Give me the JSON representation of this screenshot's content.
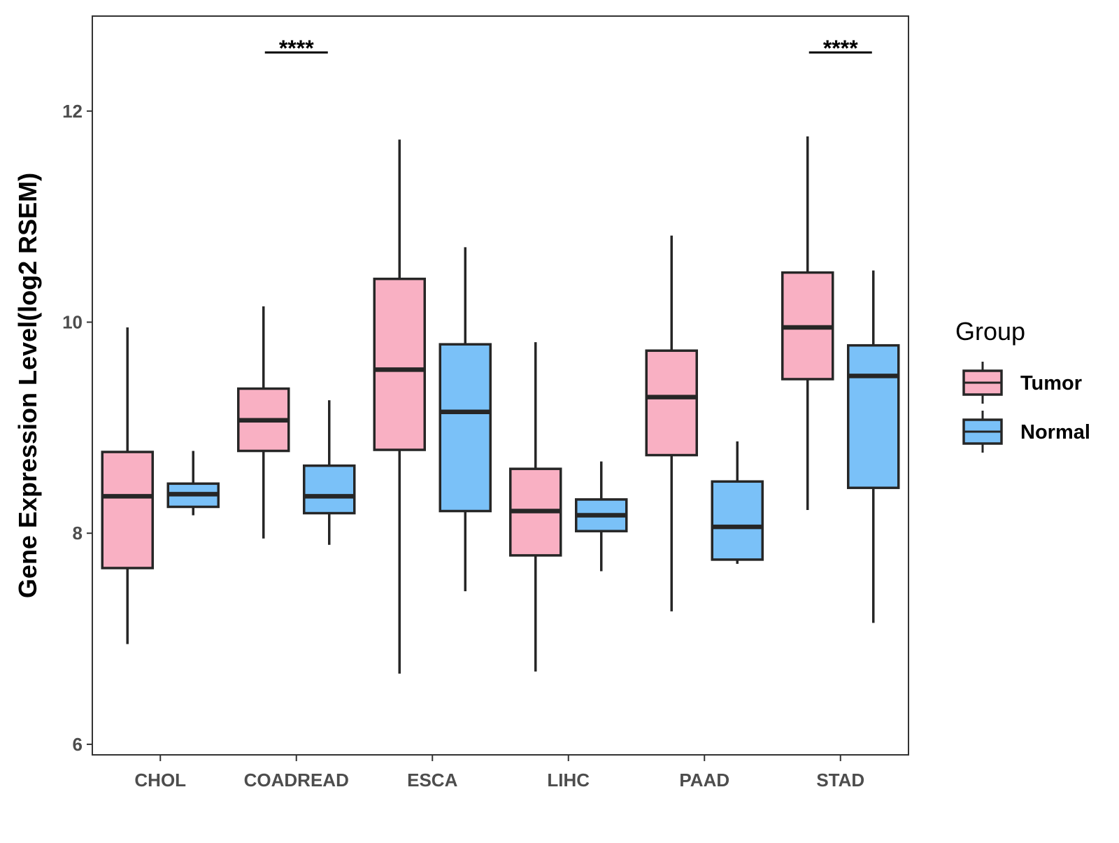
{
  "chart_data": {
    "type": "boxplot",
    "title": "",
    "xlabel": "",
    "ylabel": "Gene Expression Level(log2 RSEM)",
    "ylim": [
      5.9,
      12.9
    ],
    "yticks": [
      6,
      8,
      10,
      12
    ],
    "ytick_labels": [
      "6",
      "8",
      "10",
      "12"
    ],
    "grid": false,
    "categories": [
      "CHOL",
      "COADREAD",
      "ESCA",
      "LIHC",
      "PAAD",
      "STAD"
    ],
    "legend": {
      "title": "Group",
      "position": "right",
      "entries": [
        "Tumor",
        "Normal"
      ]
    },
    "colors": {
      "Tumor": "#F9B0C3",
      "Normal": "#7AC1F8",
      "outline": "#262626"
    },
    "series": [
      {
        "name": "Tumor",
        "stats": [
          {
            "min": 6.95,
            "q1": 7.67,
            "median": 8.35,
            "q3": 8.77,
            "max": 9.95
          },
          {
            "min": 7.95,
            "q1": 8.78,
            "median": 9.07,
            "q3": 9.37,
            "max": 10.15
          },
          {
            "min": 6.67,
            "q1": 8.79,
            "median": 9.55,
            "q3": 10.41,
            "max": 11.73
          },
          {
            "min": 6.69,
            "q1": 7.79,
            "median": 8.21,
            "q3": 8.61,
            "max": 9.81
          },
          {
            "min": 7.26,
            "q1": 8.74,
            "median": 9.29,
            "q3": 9.73,
            "max": 10.82
          },
          {
            "min": 8.22,
            "q1": 9.46,
            "median": 9.95,
            "q3": 10.47,
            "max": 11.76
          }
        ]
      },
      {
        "name": "Normal",
        "stats": [
          {
            "min": 8.17,
            "q1": 8.25,
            "median": 8.37,
            "q3": 8.47,
            "max": 8.78
          },
          {
            "min": 7.89,
            "q1": 8.19,
            "median": 8.35,
            "q3": 8.64,
            "max": 9.26
          },
          {
            "min": 7.45,
            "q1": 8.21,
            "median": 9.15,
            "q3": 9.79,
            "max": 10.71
          },
          {
            "min": 7.64,
            "q1": 8.02,
            "median": 8.17,
            "q3": 8.32,
            "max": 8.68
          },
          {
            "min": 7.71,
            "q1": 7.75,
            "median": 8.06,
            "q3": 8.49,
            "max": 8.87
          },
          {
            "min": 7.15,
            "q1": 8.43,
            "median": 9.49,
            "q3": 9.78,
            "max": 10.49
          }
        ]
      }
    ],
    "annotations": [
      {
        "category": "COADREAD",
        "text": "****"
      },
      {
        "category": "STAD",
        "text": "****"
      }
    ]
  }
}
